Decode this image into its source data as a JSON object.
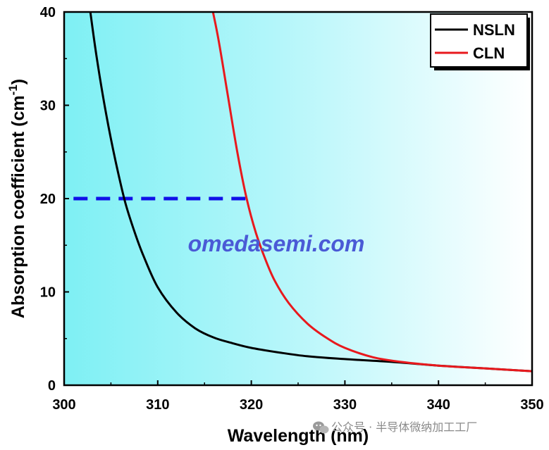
{
  "chart_data": {
    "type": "line",
    "xlabel": "Wavelength (nm)",
    "ylabel_main": "Absorption coefficient (cm",
    "ylabel_sup": "-1",
    "ylabel_end": ")",
    "xlim": [
      300,
      350
    ],
    "ylim": [
      0,
      40
    ],
    "x_ticks": [
      300,
      310,
      320,
      330,
      340,
      350
    ],
    "y_ticks": [
      0,
      10,
      20,
      30,
      40
    ],
    "grid": false,
    "legend_position": "top-right",
    "background": "cyan-to-white horizontal gradient",
    "series": [
      {
        "name": "NSLN",
        "color": "#000000",
        "x": [
          302.8,
          303.5,
          304.5,
          305.5,
          306.5,
          307.5,
          308.5,
          310,
          312,
          314,
          316,
          318,
          320,
          323,
          326,
          330,
          335,
          340,
          345,
          350
        ],
        "y": [
          40,
          35,
          29,
          24,
          19.7,
          16.5,
          13.8,
          10.5,
          7.8,
          6.1,
          5.1,
          4.5,
          4.0,
          3.5,
          3.1,
          2.8,
          2.5,
          2.1,
          1.8,
          1.5
        ]
      },
      {
        "name": "CLN",
        "color": "#e8191d",
        "x": [
          315.9,
          316.5,
          317.5,
          318.5,
          319.5,
          320.5,
          321.5,
          322.5,
          324,
          326,
          328,
          330,
          333,
          336,
          340,
          345,
          350
        ],
        "y": [
          40,
          37,
          31,
          25,
          20,
          16.3,
          13.5,
          11.2,
          8.8,
          6.6,
          5.1,
          4.0,
          3.0,
          2.5,
          2.1,
          1.8,
          1.5
        ]
      }
    ],
    "annotations": [
      {
        "type": "dashed-hline",
        "y": 20,
        "x_from": 301,
        "x_to": 319.5,
        "color": "#1010e8"
      }
    ]
  },
  "watermark": {
    "text": "omedasemi.com",
    "color": "#4a5ad6"
  },
  "footer": {
    "icon": "wechat-icon",
    "text": "公众号 · 半导体微纳加工工厂"
  }
}
